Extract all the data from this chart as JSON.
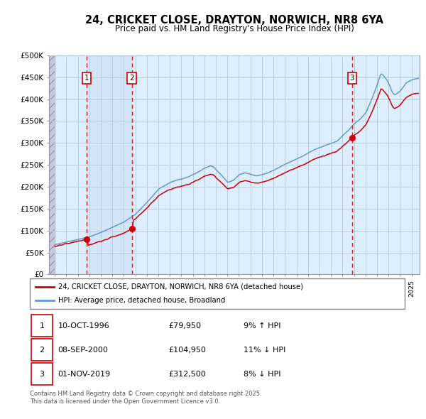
{
  "title_line1": "24, CRICKET CLOSE, DRAYTON, NORWICH, NR8 6YA",
  "title_line2": "Price paid vs. HM Land Registry's House Price Index (HPI)",
  "ylabel_ticks": [
    "£0",
    "£50K",
    "£100K",
    "£150K",
    "£200K",
    "£250K",
    "£300K",
    "£350K",
    "£400K",
    "£450K",
    "£500K"
  ],
  "ytick_values": [
    0,
    50000,
    100000,
    150000,
    200000,
    250000,
    300000,
    350000,
    400000,
    450000,
    500000
  ],
  "ylim": [
    0,
    500000
  ],
  "xlim_start": 1993.5,
  "xlim_end": 2025.7,
  "sale_dates": [
    1996.78,
    2000.69,
    2019.83
  ],
  "sale_prices": [
    79950,
    104950,
    312500
  ],
  "sale_labels": [
    "1",
    "2",
    "3"
  ],
  "sale_pct": [
    "9% ↑ HPI",
    "11% ↓ HPI",
    "8% ↓ HPI"
  ],
  "sale_date_str": [
    "10-OCT-1996",
    "08-SEP-2000",
    "01-NOV-2019"
  ],
  "legend_line1": "24, CRICKET CLOSE, DRAYTON, NORWICH, NR8 6YA (detached house)",
  "legend_line2": "HPI: Average price, detached house, Broadland",
  "footer_line1": "Contains HM Land Registry data © Crown copyright and database right 2025.",
  "footer_line2": "This data is licensed under the Open Government Licence v3.0.",
  "red_color": "#cc0000",
  "blue_color": "#6699cc",
  "bg_color": "#ddeeff",
  "grid_color": "#bbccdd",
  "dashed_color": "#cc2222",
  "box_color": "#cc0000",
  "hatch_bg": "#d0d0e8"
}
